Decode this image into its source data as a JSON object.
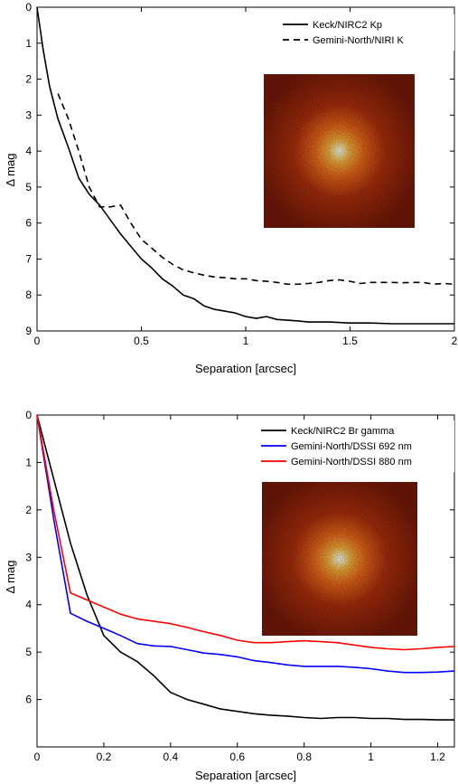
{
  "chart_data": [
    {
      "type": "line",
      "xlabel": "Separation [arcsec]",
      "ylabel": "Δ mag",
      "xlim": [
        0,
        2
      ],
      "ylim": [
        0,
        9
      ],
      "y_reversed": true,
      "xticks": [
        0,
        0.5,
        1,
        1.5,
        2
      ],
      "xtick_labels": [
        "0",
        "0.5",
        "1",
        "1.5",
        "2"
      ],
      "yticks": [
        0,
        1,
        2,
        3,
        4,
        5,
        6,
        7,
        8,
        9
      ],
      "ytick_labels": [
        "0",
        "1",
        "2",
        "3",
        "4",
        "5",
        "6",
        "7",
        "8",
        "9"
      ],
      "grid": false,
      "legend_position": "top-right",
      "inset_image": "psf-image",
      "series": [
        {
          "name": "Keck/NIRC2 Kp",
          "color": "#000000",
          "style": "solid",
          "x": [
            0,
            0.03,
            0.06,
            0.1,
            0.15,
            0.2,
            0.25,
            0.3,
            0.35,
            0.4,
            0.45,
            0.5,
            0.55,
            0.6,
            0.65,
            0.7,
            0.75,
            0.8,
            0.85,
            0.9,
            0.95,
            1.0,
            1.05,
            1.1,
            1.15,
            1.2,
            1.25,
            1.3,
            1.35,
            1.4,
            1.5,
            1.6,
            1.7,
            1.8,
            1.9,
            2.0
          ],
          "y": [
            0,
            1.2,
            2.2,
            3.1,
            3.9,
            4.75,
            5.2,
            5.5,
            5.9,
            6.3,
            6.65,
            7.0,
            7.25,
            7.55,
            7.75,
            8.0,
            8.1,
            8.3,
            8.4,
            8.45,
            8.5,
            8.6,
            8.65,
            8.6,
            8.68,
            8.7,
            8.72,
            8.75,
            8.75,
            8.75,
            8.78,
            8.78,
            8.8,
            8.8,
            8.8,
            8.8
          ]
        },
        {
          "name": "Gemini-North/NIRI K",
          "color": "#000000",
          "style": "dashed",
          "x": [
            0.1,
            0.15,
            0.2,
            0.25,
            0.3,
            0.35,
            0.4,
            0.45,
            0.5,
            0.55,
            0.6,
            0.65,
            0.7,
            0.75,
            0.8,
            0.85,
            0.9,
            0.95,
            1.0,
            1.05,
            1.1,
            1.15,
            1.2,
            1.25,
            1.3,
            1.35,
            1.4,
            1.45,
            1.5,
            1.55,
            1.6,
            1.65,
            1.7,
            1.75,
            1.8,
            1.85,
            1.9,
            1.95,
            2.0
          ],
          "y": [
            2.4,
            3.1,
            4.0,
            5.0,
            5.55,
            5.55,
            5.5,
            6.0,
            6.45,
            6.7,
            6.95,
            7.15,
            7.3,
            7.38,
            7.45,
            7.5,
            7.52,
            7.55,
            7.55,
            7.6,
            7.62,
            7.65,
            7.7,
            7.7,
            7.68,
            7.65,
            7.6,
            7.58,
            7.62,
            7.68,
            7.65,
            7.65,
            7.65,
            7.66,
            7.65,
            7.65,
            7.7,
            7.68,
            7.7
          ]
        }
      ]
    },
    {
      "type": "line",
      "xlabel": "Separation [arcsec]",
      "ylabel": "Δ mag",
      "xlim": [
        0,
        1.25
      ],
      "ylim": [
        0,
        7
      ],
      "y_reversed": true,
      "xticks": [
        0,
        0.2,
        0.4,
        0.6,
        0.8,
        1.0,
        1.2
      ],
      "xtick_labels": [
        "0",
        "0.2",
        "0.4",
        "0.6",
        "0.8",
        "1",
        "1.2"
      ],
      "yticks": [
        0,
        1,
        2,
        3,
        4,
        5,
        6
      ],
      "ytick_labels": [
        "0",
        "1",
        "2",
        "3",
        "4",
        "5",
        "6"
      ],
      "grid": false,
      "legend_position": "top-right",
      "inset_image": "psf-image",
      "series": [
        {
          "name": "Keck/NIRC2 Br gamma",
          "color": "#000000",
          "style": "solid",
          "x": [
            0,
            0.05,
            0.1,
            0.15,
            0.2,
            0.25,
            0.3,
            0.35,
            0.4,
            0.45,
            0.5,
            0.55,
            0.6,
            0.65,
            0.7,
            0.75,
            0.8,
            0.85,
            0.9,
            0.95,
            1.0,
            1.05,
            1.1,
            1.15,
            1.2,
            1.25
          ],
          "y": [
            0,
            1.35,
            2.7,
            3.8,
            4.65,
            5.0,
            5.2,
            5.5,
            5.85,
            6.0,
            6.1,
            6.2,
            6.25,
            6.3,
            6.33,
            6.35,
            6.38,
            6.4,
            6.38,
            6.38,
            6.4,
            6.4,
            6.42,
            6.42,
            6.43,
            6.43
          ]
        },
        {
          "name": "Gemini-North/DSSI 692 nm",
          "color": "#0000ff",
          "style": "solid",
          "x": [
            0,
            0.05,
            0.1,
            0.15,
            0.2,
            0.25,
            0.3,
            0.35,
            0.4,
            0.45,
            0.5,
            0.55,
            0.6,
            0.65,
            0.7,
            0.75,
            0.8,
            0.85,
            0.9,
            0.95,
            1.0,
            1.05,
            1.1,
            1.15,
            1.2,
            1.25
          ],
          "y": [
            0,
            2.2,
            4.18,
            4.35,
            4.5,
            4.65,
            4.82,
            4.87,
            4.88,
            4.95,
            5.02,
            5.05,
            5.1,
            5.18,
            5.22,
            5.27,
            5.3,
            5.3,
            5.3,
            5.32,
            5.35,
            5.4,
            5.43,
            5.43,
            5.42,
            5.4
          ]
        },
        {
          "name": "Gemini-North/DSSI 880 nm",
          "color": "#ff0000",
          "style": "solid",
          "x": [
            0,
            0.05,
            0.1,
            0.15,
            0.2,
            0.25,
            0.3,
            0.35,
            0.4,
            0.45,
            0.5,
            0.55,
            0.6,
            0.65,
            0.7,
            0.75,
            0.8,
            0.85,
            0.9,
            0.95,
            1.0,
            1.05,
            1.1,
            1.15,
            1.2,
            1.25
          ],
          "y": [
            0,
            2.0,
            3.75,
            3.9,
            4.05,
            4.2,
            4.3,
            4.35,
            4.4,
            4.48,
            4.57,
            4.65,
            4.75,
            4.8,
            4.8,
            4.78,
            4.76,
            4.78,
            4.8,
            4.85,
            4.9,
            4.93,
            4.95,
            4.93,
            4.9,
            4.88
          ]
        }
      ]
    }
  ]
}
